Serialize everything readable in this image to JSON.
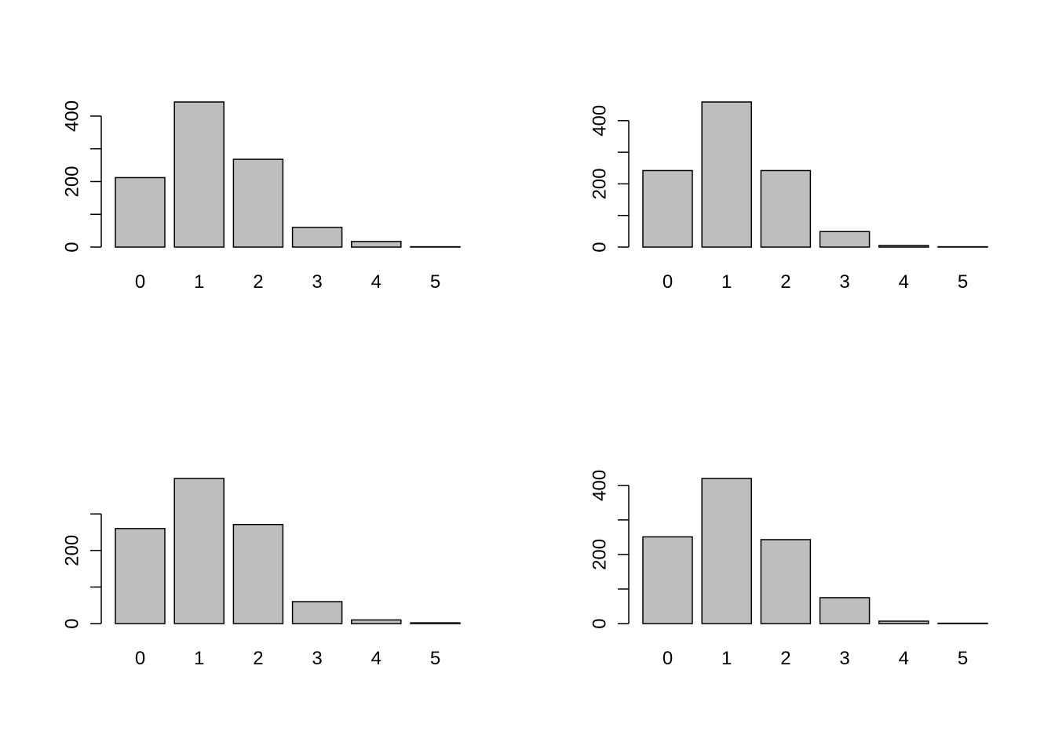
{
  "colors": {
    "bar_fill": "#bebebe",
    "bar_stroke": "#000000",
    "background": "#ffffff"
  },
  "chart_data": [
    {
      "type": "bar",
      "categories": [
        "0",
        "1",
        "2",
        "3",
        "4",
        "5"
      ],
      "values": [
        212,
        443,
        268,
        60,
        17,
        1
      ],
      "yticks": [
        0,
        100,
        200,
        300,
        400
      ],
      "ytick_labels": [
        "0",
        "200",
        "400"
      ],
      "ylim": [
        0,
        443
      ],
      "grid": false
    },
    {
      "type": "bar",
      "categories": [
        "0",
        "1",
        "2",
        "3",
        "4",
        "5"
      ],
      "values": [
        242,
        459,
        242,
        49,
        5,
        1
      ],
      "yticks": [
        0,
        100,
        200,
        300,
        400
      ],
      "ytick_labels": [
        "0",
        "200",
        "400"
      ],
      "ylim": [
        0,
        459
      ],
      "grid": false
    },
    {
      "type": "bar",
      "categories": [
        "0",
        "1",
        "2",
        "3",
        "4",
        "5"
      ],
      "values": [
        260,
        397,
        271,
        60,
        10,
        2
      ],
      "yticks": [
        0,
        100,
        200,
        300
      ],
      "ytick_labels": [
        "0",
        "200"
      ],
      "ylim": [
        0,
        397
      ],
      "grid": false
    },
    {
      "type": "bar",
      "categories": [
        "0",
        "1",
        "2",
        "3",
        "4",
        "5"
      ],
      "values": [
        251,
        420,
        243,
        75,
        7,
        1
      ],
      "yticks": [
        0,
        100,
        200,
        300,
        400
      ],
      "ytick_labels": [
        "0",
        "200",
        "400"
      ],
      "ylim": [
        0,
        420
      ],
      "grid": false
    }
  ]
}
